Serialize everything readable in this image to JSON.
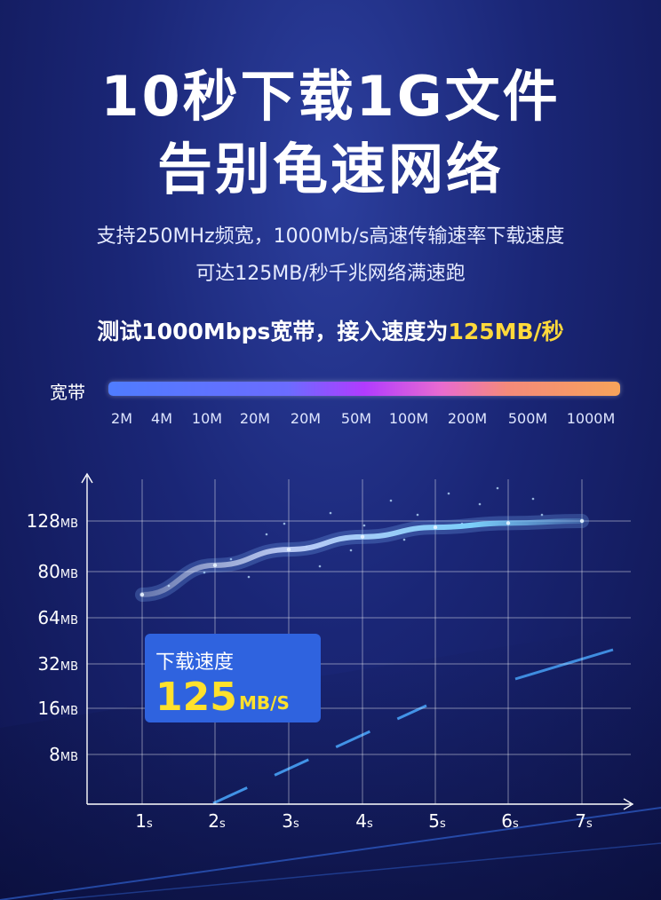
{
  "headline": {
    "line1": "10秒下载1G文件",
    "line2": "告别龟速网络"
  },
  "subtitle": {
    "line1": "支持250MHz频宽，1000Mb/s高速传输速率下载速度",
    "line2": "可达125MB/秒千兆网络满速跑"
  },
  "test_line": {
    "prefix": "测试1000Mbps宽带，接入速度为",
    "highlight": "125MB/秒"
  },
  "colors": {
    "highlight": "#ffd93b",
    "box": "#2f63df",
    "streak": "#9fd8ff"
  },
  "bandwidth": {
    "label": "宽带",
    "ticks": [
      "2M",
      "4M",
      "10M",
      "20M",
      "20M",
      "50M",
      "100M",
      "200M",
      "500M",
      "1000M"
    ]
  },
  "speed_box": {
    "label": "下载速度",
    "value": "125",
    "unit": "MB/S"
  },
  "chart_data": {
    "type": "line",
    "title": "",
    "xlabel": "",
    "ylabel": "",
    "x": [
      "1s",
      "2s",
      "3s",
      "4s",
      "5s",
      "6s",
      "7s"
    ],
    "y_ticks": [
      "8MB",
      "16MB",
      "32MB",
      "64MB",
      "80MB",
      "128MB"
    ],
    "series": [
      {
        "values": [
          72,
          86,
          101,
          113,
          122,
          126,
          128
        ]
      }
    ],
    "grid": true
  }
}
